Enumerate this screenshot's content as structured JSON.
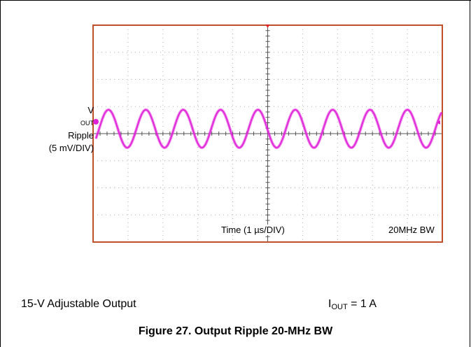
{
  "chart_data": {
    "type": "line",
    "title": "",
    "grid": true,
    "grid_divisions": {
      "x": 10,
      "y": 8
    },
    "xlabel": "Time (1 µs/DIV)",
    "ylabel": "VOUT Ripple (5 mV/DIV)",
    "annotation": "20MHz BW",
    "series": [
      {
        "name": "VOUT Ripple",
        "color": "#e020d8",
        "description_free": true,
        "x_div": [
          0,
          0.25,
          0.5,
          0.75,
          1.0,
          1.25,
          1.5,
          1.75,
          2.0,
          2.25,
          2.5,
          2.75,
          3.0,
          3.25,
          3.5,
          3.75,
          4.0,
          4.25,
          4.5,
          4.75,
          5.0,
          5.25,
          5.5,
          5.75,
          6.0,
          6.25,
          6.5,
          6.75,
          7.0,
          7.25,
          7.5,
          7.75,
          8.0,
          8.25,
          8.5,
          8.75,
          9.0,
          9.25,
          9.5,
          9.75,
          10.0
        ],
        "y_mv": [
          1.5,
          3.8,
          0.0,
          -3.8,
          0.0,
          3.8,
          0.0,
          -3.8,
          0.0,
          3.8,
          0.0,
          -3.8,
          0.0,
          3.8,
          0.0,
          -3.8,
          0.0,
          3.8,
          0.0,
          -3.8,
          0.0,
          3.8,
          0.0,
          -3.8,
          0.0,
          3.8,
          0.0,
          -3.8,
          0.0,
          3.8,
          0.0,
          -3.8,
          0.0,
          3.8,
          0.0,
          -3.8,
          0.0,
          3.8,
          0.0,
          -3.8,
          0.0
        ]
      }
    ]
  },
  "labels": {
    "trace_name_main": "V",
    "trace_name_sub": "OUT",
    "trace_name_rest": " Ripple",
    "trace_scale": "(5 mV/DIV)",
    "time_scale": "Time (1 µs/DIV)",
    "bandwidth": "20MHz BW"
  },
  "conditions": {
    "left": "15-V Adjustable Output",
    "right_main": "I",
    "right_sub": "OUT",
    "right_rest": " = 1 A"
  },
  "caption": "Figure 27. Output Ripple 20-MHz BW",
  "colors": {
    "frame": "#c0502a",
    "trace": "#e020d8",
    "grid": "#b0b0b0"
  }
}
